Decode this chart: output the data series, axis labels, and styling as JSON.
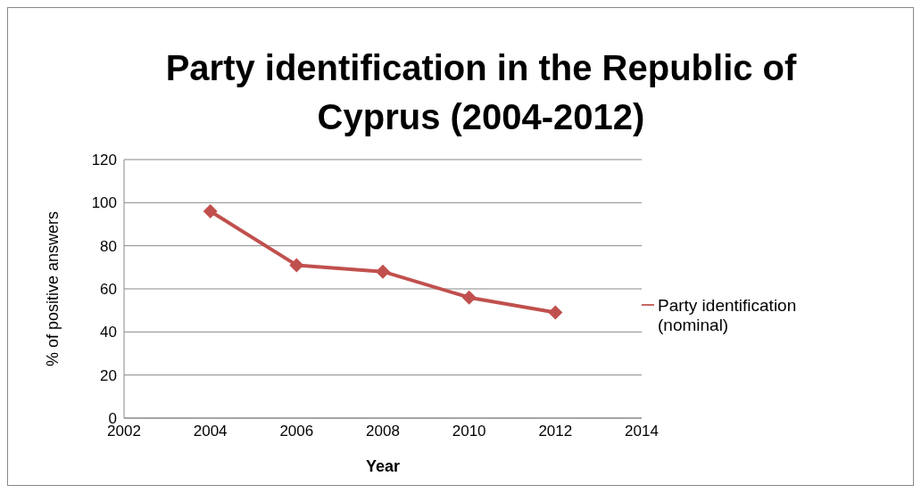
{
  "chart_data": {
    "type": "line",
    "title": "Party identification in the Republic of Cyprus (2004-2012)",
    "xlabel": "Year",
    "ylabel": "% of positive answers",
    "x": [
      2004,
      2006,
      2008,
      2010,
      2012
    ],
    "series": [
      {
        "name": "Party identification (nominal)",
        "color": "#c0504d",
        "values": [
          96,
          71,
          68,
          56,
          49
        ]
      }
    ],
    "xlim": [
      2002,
      2014
    ],
    "xticks": [
      2002,
      2004,
      2006,
      2008,
      2010,
      2012,
      2014
    ],
    "ylim": [
      0,
      120
    ],
    "yticks": [
      0,
      20,
      40,
      60,
      80,
      100,
      120
    ],
    "grid": "y",
    "legend": "right",
    "marker": "diamond",
    "line_style": "solid"
  }
}
